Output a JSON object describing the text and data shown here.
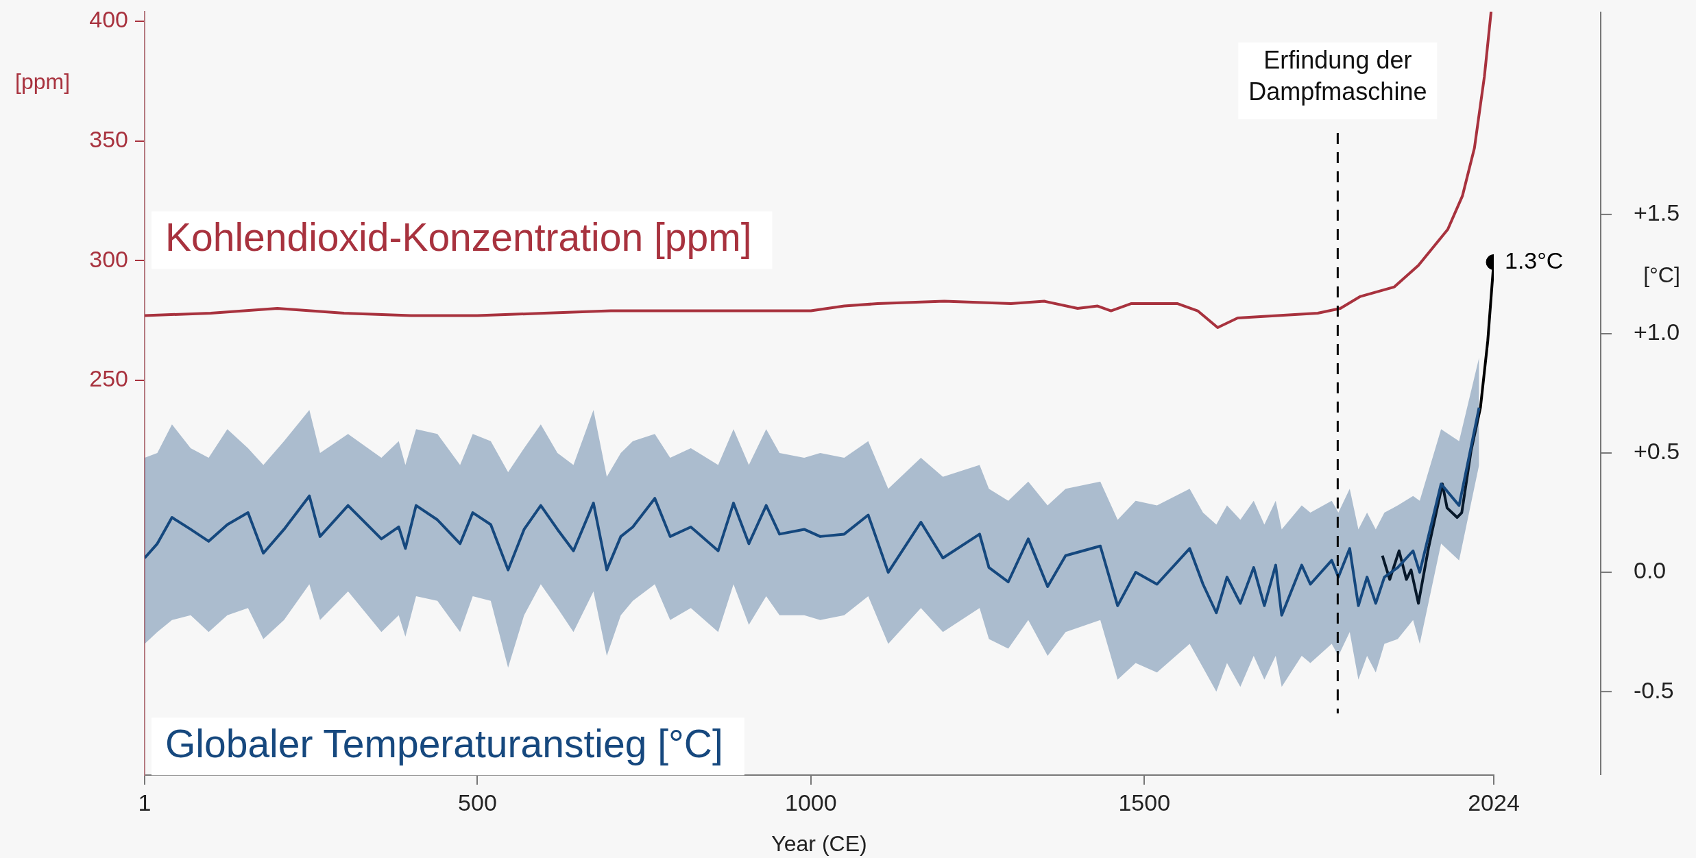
{
  "chart_data": {
    "type": "line",
    "xlabel": "Year (CE)",
    "ylabel": "[ppm]",
    "y2label": "[°C]",
    "xlim": [
      1,
      2024
    ],
    "xticks": [
      1,
      500,
      1000,
      1500,
      2024
    ],
    "ylim": [
      85,
      404
    ],
    "yticks": [
      250,
      300,
      350,
      400
    ],
    "y2lim": [
      -0.85,
      2.35
    ],
    "y2ticks": [
      {
        "value": 1.5,
        "label": "+1.5"
      },
      {
        "value": 1,
        "label": "+1.0"
      },
      {
        "value": 0.5,
        "label": "+0.5"
      },
      {
        "value": 0,
        "label": "0.0"
      },
      {
        "value": -0.5,
        "label": "-0.5"
      }
    ],
    "grid": false,
    "legend": false,
    "ref_lines": [
      {
        "axis": "x",
        "value": 1790,
        "label": "Erfindung der Dampfmaschine",
        "line_style": "dashed",
        "color": "#000000"
      }
    ],
    "series": [
      {
        "name": "Kohlendioxid-Konzentration [ppm]",
        "color": "#a8323e",
        "axis": "y",
        "x": [
          1,
          100,
          200,
          300,
          400,
          500,
          600,
          700,
          800,
          900,
          1000,
          1050,
          1100,
          1200,
          1300,
          1350,
          1400,
          1430,
          1450,
          1480,
          1550,
          1580,
          1610,
          1640,
          1700,
          1760,
          1794,
          1824,
          1875,
          1911,
          1955,
          1977,
          1995,
          2010,
          2020
        ],
        "values": [
          277,
          278,
          280,
          278,
          277,
          277,
          278,
          279,
          279,
          279,
          279,
          281,
          282,
          283,
          282,
          283,
          280,
          281,
          279,
          282,
          282,
          279,
          272,
          276,
          277,
          278,
          280,
          285,
          289,
          298,
          313,
          327,
          347,
          377,
          404
        ]
      },
      {
        "name": "Globaler Temperaturanstieg [°C]",
        "color": "#16487e",
        "axis": "y2",
        "x": [
          1,
          20,
          42,
          70,
          97,
          125,
          156,
          179,
          210,
          248,
          264,
          306,
          356,
          382,
          392,
          408,
          440,
          474,
          493,
          520,
          546,
          570,
          595,
          620,
          644,
          674,
          694,
          715,
          733,
          766,
          789,
          820,
          861,
          884,
          907,
          933,
          953,
          990,
          1014,
          1050,
          1086,
          1116,
          1165,
          1198,
          1253,
          1267,
          1296,
          1326,
          1355,
          1382,
          1434,
          1460,
          1487,
          1519,
          1568,
          1588,
          1608,
          1624,
          1644,
          1664,
          1680,
          1697,
          1706,
          1736,
          1749,
          1781,
          1791,
          1808,
          1821,
          1834,
          1847,
          1860,
          1880,
          1903,
          1913,
          1945,
          1972,
          2002
        ],
        "values": [
          0.06,
          0.12,
          0.23,
          0.18,
          0.13,
          0.2,
          0.25,
          0.08,
          0.18,
          0.32,
          0.15,
          0.28,
          0.14,
          0.19,
          0.1,
          0.28,
          0.22,
          0.12,
          0.25,
          0.2,
          0.01,
          0.18,
          0.28,
          0.18,
          0.09,
          0.29,
          0.01,
          0.15,
          0.19,
          0.31,
          0.15,
          0.19,
          0.09,
          0.29,
          0.12,
          0.28,
          0.16,
          0.18,
          0.15,
          0.16,
          0.24,
          0.0,
          0.21,
          0.06,
          0.16,
          0.02,
          -0.04,
          0.14,
          -0.06,
          0.07,
          0.11,
          -0.14,
          0.0,
          -0.05,
          0.1,
          -0.05,
          -0.17,
          -0.02,
          -0.13,
          0.02,
          -0.14,
          0.03,
          -0.18,
          0.03,
          -0.05,
          0.05,
          -0.02,
          0.1,
          -0.14,
          -0.02,
          -0.13,
          -0.02,
          0.02,
          0.09,
          0.0,
          0.37,
          0.28,
          0.69
        ],
        "upper": [
          0.48,
          0.5,
          0.62,
          0.52,
          0.48,
          0.6,
          0.52,
          0.45,
          0.55,
          0.68,
          0.5,
          0.58,
          0.48,
          0.55,
          0.45,
          0.6,
          0.58,
          0.45,
          0.58,
          0.55,
          0.42,
          0.52,
          0.62,
          0.5,
          0.45,
          0.68,
          0.4,
          0.5,
          0.55,
          0.58,
          0.48,
          0.52,
          0.45,
          0.6,
          0.45,
          0.6,
          0.5,
          0.48,
          0.5,
          0.48,
          0.55,
          0.35,
          0.48,
          0.4,
          0.45,
          0.35,
          0.3,
          0.38,
          0.28,
          0.35,
          0.38,
          0.22,
          0.3,
          0.28,
          0.35,
          0.25,
          0.2,
          0.28,
          0.22,
          0.3,
          0.2,
          0.3,
          0.18,
          0.28,
          0.25,
          0.3,
          0.25,
          0.35,
          0.18,
          0.25,
          0.18,
          0.25,
          0.28,
          0.32,
          0.3,
          0.6,
          0.55,
          0.9
        ],
        "lower": [
          -0.3,
          -0.25,
          -0.2,
          -0.18,
          -0.25,
          -0.18,
          -0.15,
          -0.28,
          -0.2,
          -0.05,
          -0.2,
          -0.08,
          -0.25,
          -0.18,
          -0.27,
          -0.1,
          -0.12,
          -0.25,
          -0.1,
          -0.12,
          -0.4,
          -0.18,
          -0.05,
          -0.15,
          -0.25,
          -0.08,
          -0.35,
          -0.18,
          -0.12,
          -0.05,
          -0.2,
          -0.15,
          -0.25,
          -0.05,
          -0.22,
          -0.1,
          -0.18,
          -0.18,
          -0.2,
          -0.18,
          -0.1,
          -0.3,
          -0.15,
          -0.25,
          -0.15,
          -0.28,
          -0.32,
          -0.2,
          -0.35,
          -0.25,
          -0.2,
          -0.45,
          -0.38,
          -0.42,
          -0.3,
          -0.4,
          -0.5,
          -0.38,
          -0.48,
          -0.35,
          -0.45,
          -0.35,
          -0.48,
          -0.35,
          -0.38,
          -0.3,
          -0.35,
          -0.25,
          -0.45,
          -0.35,
          -0.42,
          -0.3,
          -0.28,
          -0.2,
          -0.3,
          0.12,
          0.05,
          0.45
        ]
      },
      {
        "color": "#000000",
        "axis": "y2",
        "x": [
          1857,
          1868,
          1882,
          1893,
          1900,
          1911,
          1926,
          1947,
          1954,
          1969,
          1976,
          1990,
          2004,
          2015,
          2024
        ],
        "values": [
          0.07,
          -0.03,
          0.09,
          -0.03,
          0.01,
          -0.13,
          0.1,
          0.37,
          0.27,
          0.23,
          0.25,
          0.51,
          0.69,
          0.97,
          1.3
        ]
      },
      {
        "type": "scatter",
        "color": "#000000",
        "axis": "y2",
        "marker": "circle",
        "x": [
          2024
        ],
        "values": [
          1.3
        ],
        "value_labels": [
          "1.3°C"
        ]
      }
    ]
  }
}
